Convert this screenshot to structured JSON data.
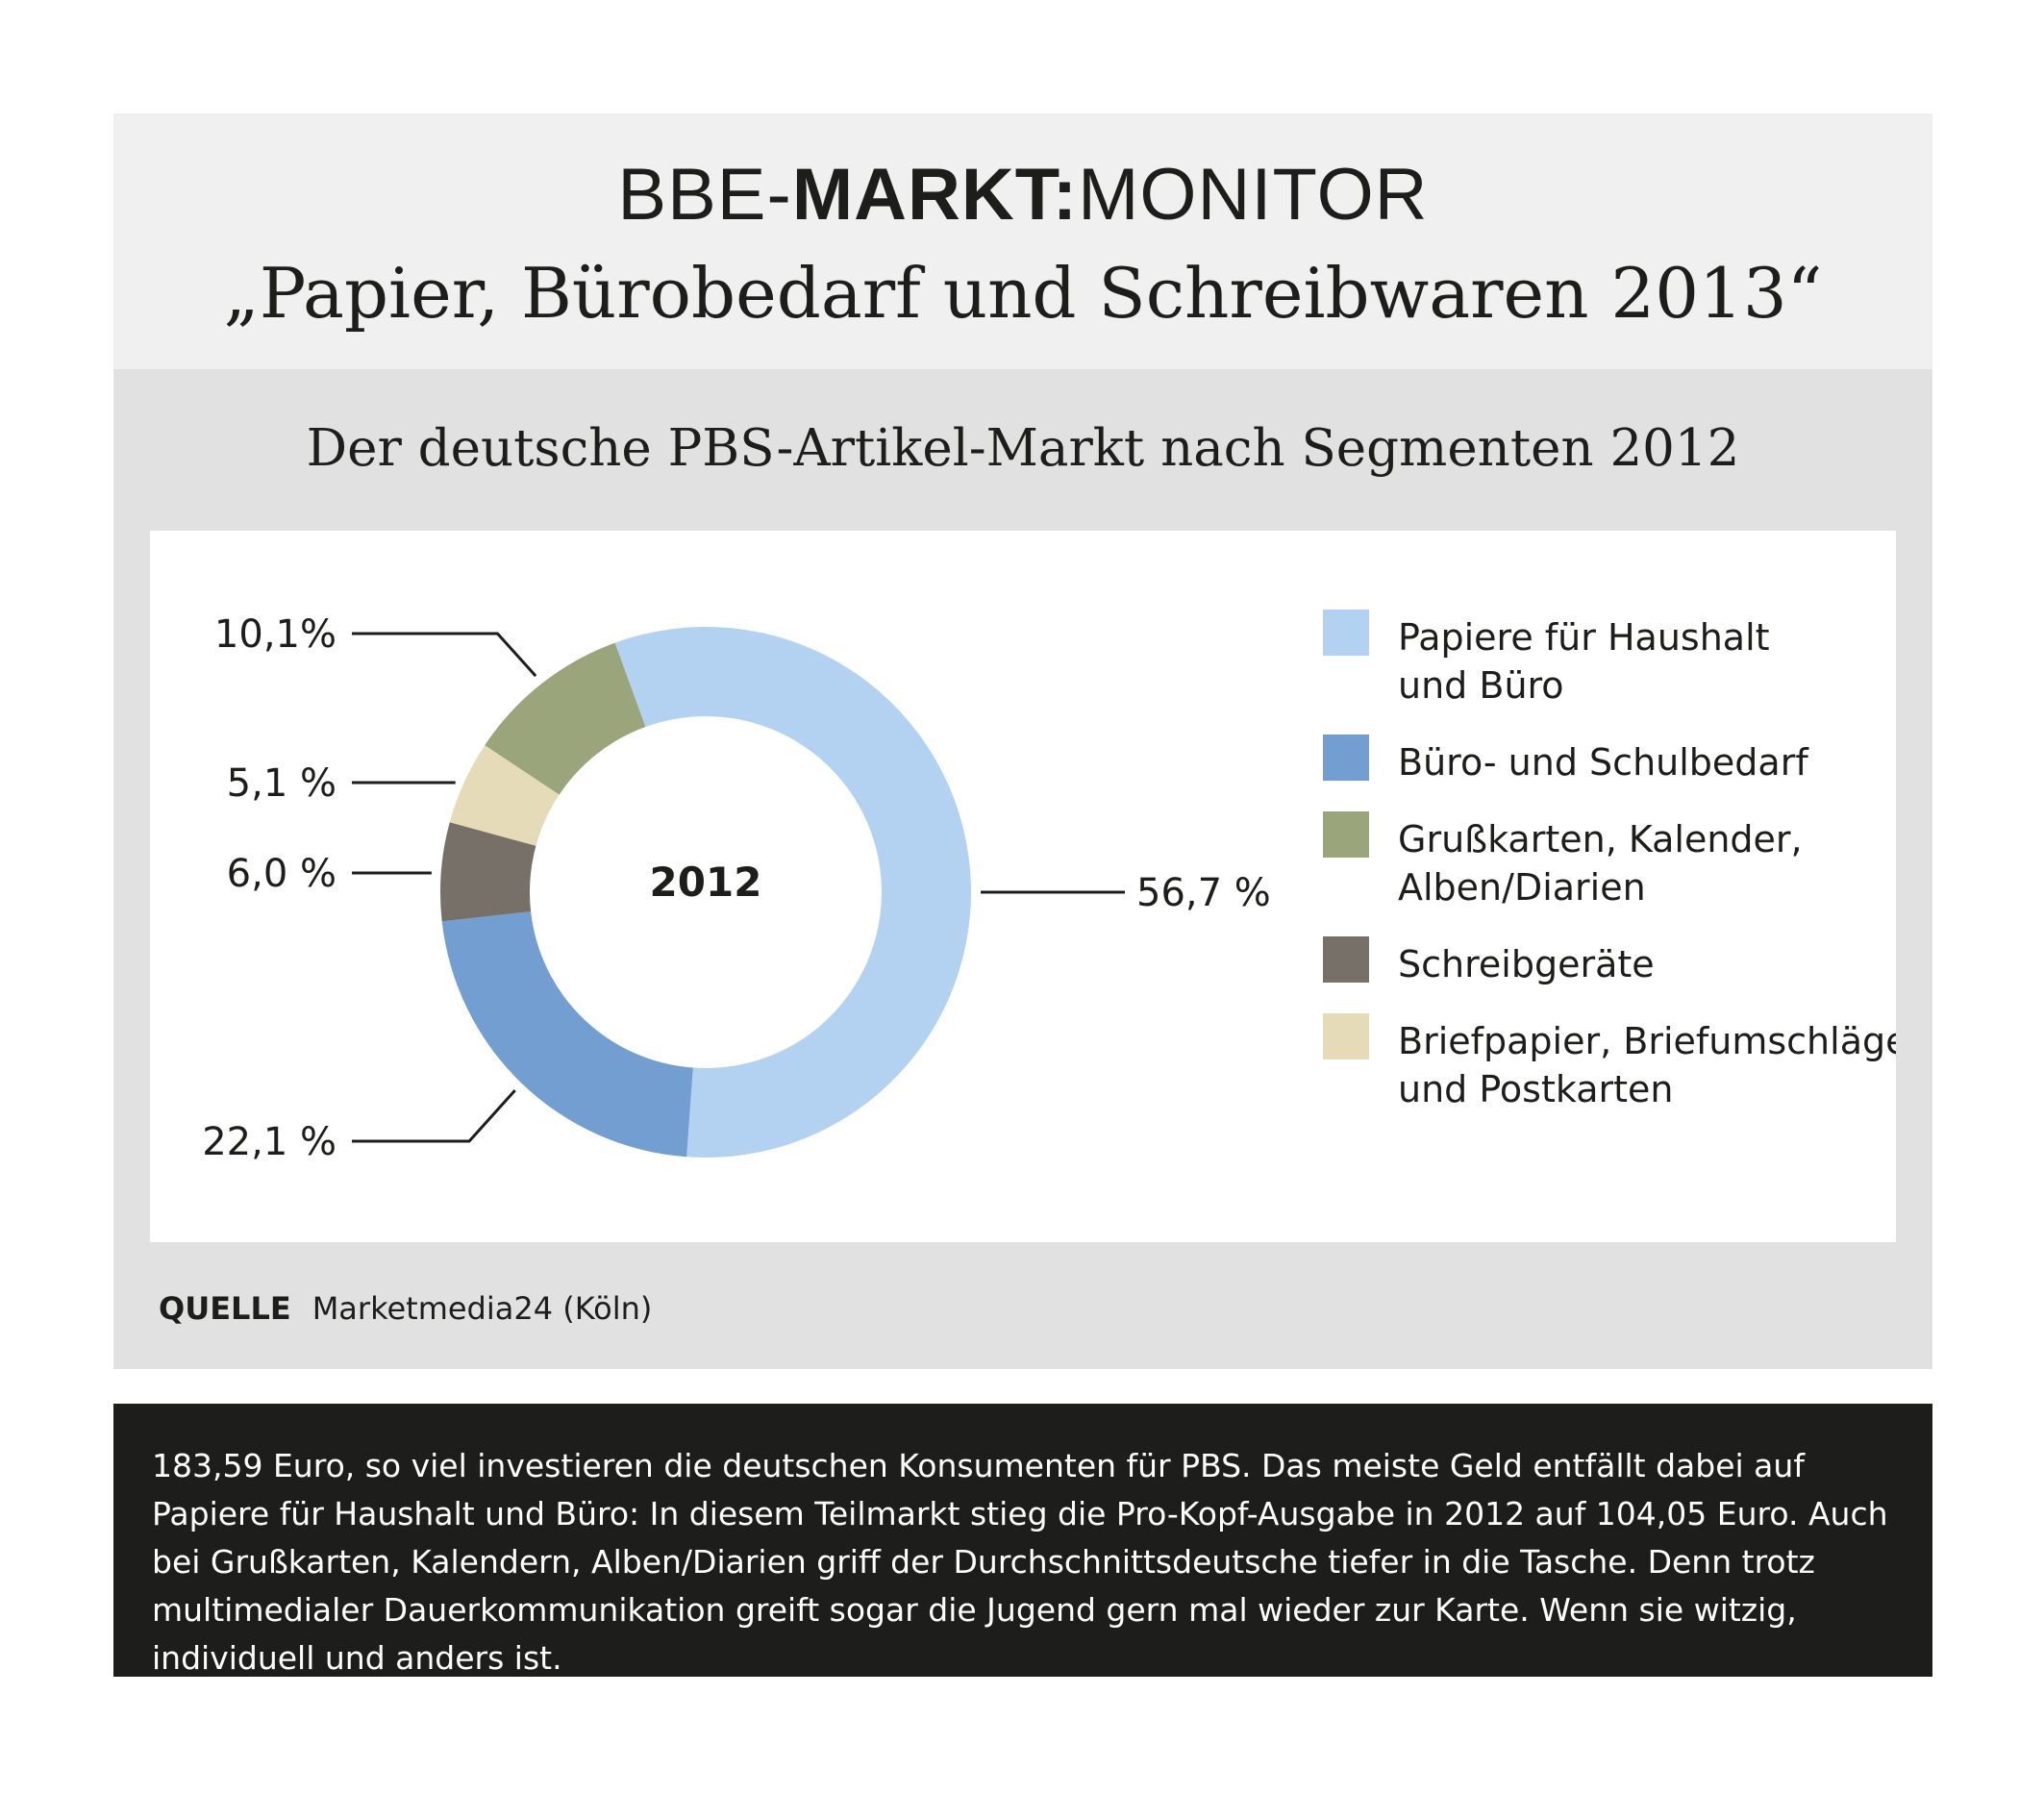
{
  "header": {
    "brand_prefix": "BBE-",
    "brand_bold": "MARKT:",
    "brand_suffix": "MONITOR",
    "title": "„Papier, Bürobedarf und Schreibwaren 2013“"
  },
  "source": {
    "label": "QUELLE",
    "text": "Marketmedia24 (Köln)"
  },
  "footer_text": "183,59 Euro, so viel investieren die deutschen Konsumenten für PBS. Das meiste Geld entfällt dabei auf Papiere für Haushalt und Büro: In diesem Teilmarkt stieg die Pro-Kopf-Ausgabe in 2012 auf 104,05 Euro. Auch bei Grußkarten, Kalendern, Alben/Diarien griff der Durchschnittsdeutsche tiefer in die Tasche. Denn trotz multimedialer Dauerkommunikation greift sogar die Jugend gern mal wieder zur Karte. Wenn sie witzig, individuell und anders ist.",
  "chart_data": {
    "type": "pie",
    "title": "Der deutsche PBS-Artikel-Markt nach Segmenten 2012",
    "center_label": "2012",
    "donut": true,
    "legend_position": "right",
    "slices": [
      {
        "name": "Papiere für Haushalt und Büro",
        "legend_lines": [
          "Papiere für Haushalt",
          "und Büro"
        ],
        "value": 56.7,
        "label": "56,7 %",
        "color": "#b3d1f1"
      },
      {
        "name": "Büro- und Schulbedarf",
        "legend_lines": [
          "Büro- und Schulbedarf"
        ],
        "value": 22.1,
        "label": "22,1 %",
        "color": "#739ed1"
      },
      {
        "name": "Schreibgeräte",
        "legend_lines": [
          "Schreibgeräte"
        ],
        "value": 6.0,
        "label": "6,0 %",
        "color": "#767069"
      },
      {
        "name": "Briefpapier, Briefumschläge und Postkarten",
        "legend_lines": [
          "Briefpapier, Briefumschläge",
          "und Postkarten"
        ],
        "value": 5.1,
        "label": "5,1 %",
        "color": "#e6dbb9"
      },
      {
        "name": "Grußkarten, Kalender, Alben/Diarien",
        "legend_lines": [
          "Grußkarten, Kalender,",
          "Alben/Diarien"
        ],
        "value": 10.1,
        "label": "10,1%",
        "color": "#9ba57b"
      }
    ],
    "legend_order": [
      "Papiere für Haushalt und Büro",
      "Büro- und Schulbedarf",
      "Grußkarten, Kalender, Alben/Diarien",
      "Schreibgeräte",
      "Briefpapier, Briefumschläge und Postkarten"
    ]
  }
}
